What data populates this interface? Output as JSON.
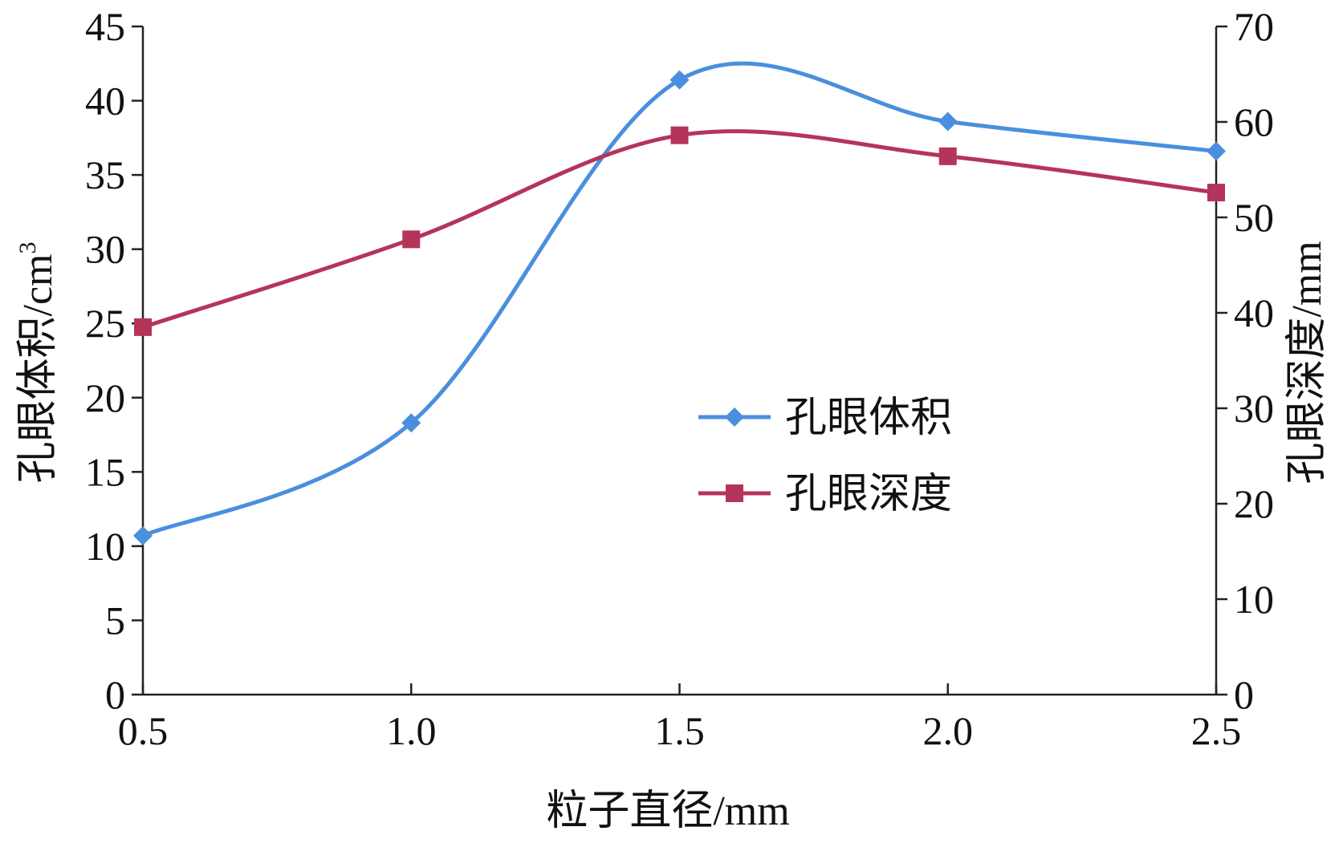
{
  "chart_data": {
    "type": "line",
    "title": "",
    "xlabel": "粒子直径/mm",
    "ylabel_left_main": "孔眼体积/cm",
    "ylabel_left_sup": "3",
    "ylabel_right": "孔眼深度/mm",
    "x": [
      0.5,
      1.0,
      1.5,
      2.0,
      2.5
    ],
    "x_ticks": [
      "0.5",
      "1.0",
      "1.5",
      "2.0",
      "2.5"
    ],
    "x_range": [
      0.5,
      2.5
    ],
    "y_left_ticks": [
      "0",
      "5",
      "10",
      "15",
      "20",
      "25",
      "30",
      "35",
      "40",
      "45"
    ],
    "y_left_range": [
      0,
      45
    ],
    "y_right_ticks": [
      "0",
      "10",
      "20",
      "30",
      "40",
      "50",
      "60",
      "70"
    ],
    "y_right_range": [
      0,
      70
    ],
    "grid": false,
    "smooth": true,
    "legend_placement": "center-right",
    "series": [
      {
        "name": "孔眼体积",
        "axis": "left",
        "color": "#4a8fde",
        "marker": "diamond",
        "values": [
          10.7,
          18.3,
          41.4,
          38.6,
          36.6
        ]
      },
      {
        "name": "孔眼深度",
        "axis": "right",
        "color": "#b5345a",
        "marker": "square",
        "values": [
          38.5,
          47.7,
          58.6,
          56.4,
          52.6
        ]
      }
    ]
  }
}
